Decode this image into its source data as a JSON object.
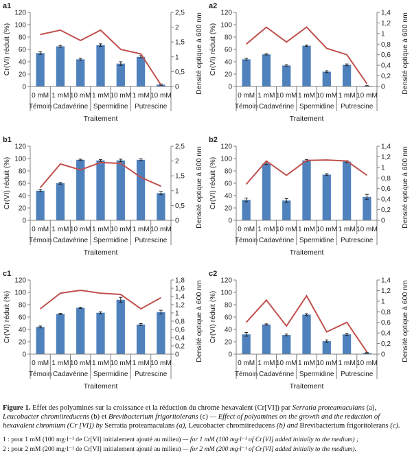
{
  "chart_data": [
    {
      "type": "bar",
      "panel": "a1",
      "ylabel": "Cr(VI) réduit (%)",
      "y2label": "Densité optique à 600 nm",
      "xlabel": "Traitement",
      "ylim": [
        0,
        120
      ],
      "yticks": [
        0,
        20,
        40,
        60,
        80,
        100,
        120
      ],
      "y2lim": [
        0,
        2.5
      ],
      "y2ticks": [
        "0",
        "0,5",
        "1",
        "1,5",
        "2",
        "2,5"
      ],
      "categories": [
        "0 mM",
        "1 mM",
        "10 mM",
        "1 mM",
        "10 mM",
        "1 mM",
        "10 mM"
      ],
      "groups": [
        {
          "label": "Témoin",
          "span": 1
        },
        {
          "label": "Cadavérine",
          "span": 2
        },
        {
          "label": "Spermidine",
          "span": 2
        },
        {
          "label": "Putrescine",
          "span": 2
        }
      ],
      "series": [
        {
          "kind": "bar",
          "values": [
            54,
            65,
            44,
            67,
            37,
            48,
            3
          ],
          "errors": [
            2,
            1.5,
            1.5,
            2,
            3,
            2,
            1
          ]
        },
        {
          "kind": "line",
          "axis": "y2",
          "values": [
            1.75,
            1.9,
            1.55,
            1.9,
            1.25,
            1.1,
            0.05
          ]
        }
      ]
    },
    {
      "type": "bar",
      "panel": "a2",
      "ylabel": "Cr(VI) réduit (%)",
      "y2label": "Densité optique à 600 nm",
      "xlabel": "Traitement",
      "ylim": [
        0,
        120
      ],
      "yticks": [
        0,
        20,
        40,
        60,
        80,
        100,
        120
      ],
      "y2lim": [
        0,
        1.4
      ],
      "y2ticks": [
        "0",
        "0,2",
        "0,4",
        "0,6",
        "0,8",
        "1",
        "1,2",
        "1,4"
      ],
      "categories": [
        "0 mM",
        "1 mM",
        "10 mM",
        "1 mM",
        "10 mM",
        "1 mM",
        "10 mM"
      ],
      "groups": [
        {
          "label": "Témoin",
          "span": 1
        },
        {
          "label": "Cadavérine",
          "span": 2
        },
        {
          "label": "Spermidine",
          "span": 2
        },
        {
          "label": "Putrescine",
          "span": 2
        }
      ],
      "series": [
        {
          "kind": "bar",
          "values": [
            44,
            52,
            34,
            66,
            24,
            35,
            1
          ],
          "errors": [
            1.5,
            1,
            1,
            1,
            1.5,
            1.5,
            0.5
          ]
        },
        {
          "kind": "line",
          "axis": "y2",
          "values": [
            0.8,
            1.12,
            0.84,
            1.12,
            0.72,
            0.6,
            0.05
          ]
        }
      ]
    },
    {
      "type": "bar",
      "panel": "b1",
      "ylabel": "Cr(VI) réduit (%)",
      "y2label": "Densité optique à 600 nm",
      "xlabel": "Traitement",
      "ylim": [
        0,
        120
      ],
      "yticks": [
        0,
        20,
        40,
        60,
        80,
        100,
        120
      ],
      "y2lim": [
        0,
        2.5
      ],
      "y2ticks": [
        "0",
        "0,5",
        "1",
        "1,5",
        "2",
        "2,5"
      ],
      "categories": [
        "0 mM",
        "1 mM",
        "10 mM",
        "1 mM",
        "10 mM",
        "1 mM",
        "10 mM"
      ],
      "groups": [
        {
          "label": "Témoin",
          "span": 1
        },
        {
          "label": "Cadavérine",
          "span": 2
        },
        {
          "label": "Spermidine",
          "span": 2
        },
        {
          "label": "Putrescine",
          "span": 2
        }
      ],
      "series": [
        {
          "kind": "bar",
          "values": [
            48,
            60,
            98,
            97,
            97,
            98,
            44
          ],
          "errors": [
            2,
            1.5,
            1,
            1.5,
            2,
            1.5,
            2.5
          ]
        },
        {
          "kind": "line",
          "axis": "y2",
          "values": [
            1.1,
            1.9,
            1.7,
            1.95,
            1.92,
            1.45,
            1.15
          ]
        }
      ]
    },
    {
      "type": "bar",
      "panel": "b2",
      "ylabel": "Cr(VI) réduit (%)",
      "y2label": "Densité optique à 600 nm",
      "xlabel": "Traitement",
      "ylim": [
        0,
        120
      ],
      "yticks": [
        0,
        20,
        40,
        60,
        80,
        100,
        120
      ],
      "y2lim": [
        0,
        1.4
      ],
      "y2ticks": [
        "0",
        "0,2",
        "0,4",
        "0,6",
        "0,8",
        "1",
        "1,2",
        "1,4"
      ],
      "categories": [
        "0 mM",
        "1 mM",
        "10 mM",
        "1 mM",
        "10 mM",
        "1 mM",
        "10 mM"
      ],
      "groups": [
        {
          "label": "Témoin",
          "span": 1
        },
        {
          "label": "Cadavérine",
          "span": 2
        },
        {
          "label": "Spermidine",
          "span": 2
        },
        {
          "label": "Putrescine",
          "span": 2
        }
      ],
      "series": [
        {
          "kind": "bar",
          "values": [
            33,
            92,
            32,
            97,
            74,
            95,
            38
          ],
          "errors": [
            3,
            1.5,
            3,
            1.5,
            1.5,
            1.5,
            4
          ]
        },
        {
          "kind": "line",
          "axis": "y2",
          "values": [
            0.68,
            1.12,
            0.85,
            1.13,
            1.14,
            1.12,
            0.85
          ]
        }
      ]
    },
    {
      "type": "bar",
      "panel": "c1",
      "ylabel": "Cr(VI) réduit (%)",
      "y2label": "Densité optique à 600 nm",
      "xlabel": "Traitement",
      "ylim": [
        0,
        120
      ],
      "yticks": [
        0,
        20,
        40,
        60,
        80,
        100,
        120
      ],
      "y2lim": [
        0,
        1.8
      ],
      "y2ticks": [
        "0",
        "0,2",
        "0,4",
        "0,6",
        "0,8",
        "1",
        "1,2",
        "1,4",
        "1,6",
        "1,8"
      ],
      "categories": [
        "0 mM",
        "1 mM",
        "10 mM",
        "1 mM",
        "10 mM",
        "1 mM",
        "10 mM"
      ],
      "groups": [
        {
          "label": "Témoin",
          "span": 1
        },
        {
          "label": "Cadavérine",
          "span": 2
        },
        {
          "label": "Spermidine",
          "span": 2
        },
        {
          "label": "Putrescine",
          "span": 2
        }
      ],
      "series": [
        {
          "kind": "bar",
          "values": [
            44,
            65,
            75,
            67,
            88,
            48,
            68
          ],
          "errors": [
            1.5,
            1,
            1,
            1.5,
            4,
            1.5,
            3
          ]
        },
        {
          "kind": "line",
          "axis": "y2",
          "values": [
            1.1,
            1.48,
            1.55,
            1.48,
            1.45,
            1.1,
            1.37
          ]
        }
      ]
    },
    {
      "type": "bar",
      "panel": "c2",
      "ylabel": "Cr(VI) réduit (%)",
      "y2label": "Densité optique à 600 nm",
      "xlabel": "Traitement",
      "ylim": [
        0,
        120
      ],
      "yticks": [
        0,
        20,
        40,
        60,
        80,
        100,
        120
      ],
      "y2lim": [
        0,
        1.4
      ],
      "y2ticks": [
        "0",
        "0,2",
        "0,4",
        "0,6",
        "0,8",
        "1",
        "1,2",
        "1,4"
      ],
      "categories": [
        "0 mM",
        "1 mM",
        "10 mM",
        "1 mM",
        "10 mM",
        "1 mM",
        "10 mM"
      ],
      "groups": [
        {
          "label": "Témoin",
          "span": 1
        },
        {
          "label": "Cadavérine",
          "span": 2
        },
        {
          "label": "Spermidine",
          "span": 2
        },
        {
          "label": "Putrescine",
          "span": 2
        }
      ],
      "series": [
        {
          "kind": "bar",
          "values": [
            32,
            48,
            31,
            64,
            21,
            32,
            2
          ],
          "errors": [
            3,
            1,
            1.5,
            1.5,
            2,
            1.5,
            1
          ]
        },
        {
          "kind": "line",
          "axis": "y2",
          "values": [
            0.6,
            1.02,
            0.53,
            1.1,
            0.42,
            0.6,
            0.04
          ]
        }
      ]
    }
  ],
  "colors": {
    "bar": "#4f81bd",
    "line": "#c0504d",
    "axis": "#7f7f7f",
    "text": "#222222"
  },
  "caption": {
    "fig_label": "Figure 1.",
    "fr_text": "Effet des polyamines sur la croissance et la réduction du chrome hexavalent (Cr[VI]) par",
    "org_a": "Serratia proteamaculans",
    "letter_a": "(a)",
    "org_b": "Leucobacter chromiireducens",
    "letter_b": "(b)",
    "et": "et",
    "org_c": "Brevibacterium frigoritolerans",
    "letter_c": "(c)",
    "en_text": "— Effect of polyamines on the growth and the reduction of hexavalent chromium (Cr [VI]) by",
    "en_org_a": "Serratia proteamaculans",
    "en_letter_a": "(a),",
    "en_org_b": "Leucobacter chromiireducens",
    "en_letter_b": "(b)",
    "en_and": "and",
    "en_org_c": "Brevibacterium frigoritolerans",
    "en_letter_c": "(c).",
    "note1": "1 : pour 1 mM (100 mg·l⁻¹ de Cr[VI] initialement ajouté au milieu)",
    "note1_en": "— for 1 mM (100 mg·l⁻¹ of Cr[VI] added initially to the medium) ;",
    "note2": "2 : pour 2 mM (200 mg·l⁻¹ de Cr[VI] initialement ajouté au milieu)",
    "note2_en": "— for 2 mM (200 mg·l⁻¹ of Cr[VI] added initially to the medium)."
  }
}
